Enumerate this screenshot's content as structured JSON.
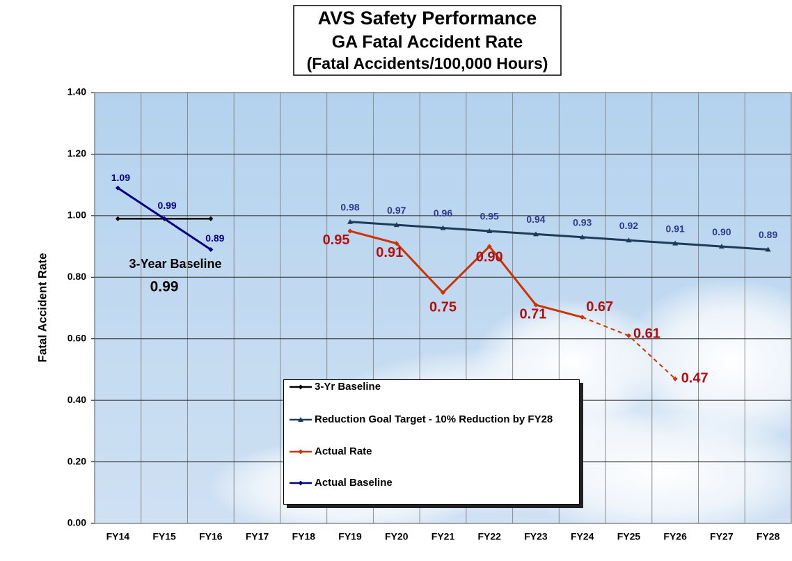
{
  "chart_data": {
    "type": "line",
    "title": [
      "AVS Safety Performance",
      "GA Fatal Accident Rate",
      "(Fatal Accidents/100,000 Hours)"
    ],
    "y_label": "Fatal Accident Rate",
    "categories": [
      "FY14",
      "FY15",
      "FY16",
      "FY17",
      "FY18",
      "FY19",
      "FY20",
      "FY21",
      "FY22",
      "FY23",
      "FY24",
      "FY25",
      "FY26",
      "FY27",
      "FY28"
    ],
    "ylim": [
      0,
      1.4
    ],
    "yticks": [
      {
        "value": 0,
        "label": "0.00"
      },
      {
        "value": 0.2,
        "label": "0.20"
      },
      {
        "value": 0.4,
        "label": "0.40"
      },
      {
        "value": 0.6,
        "label": "0.60"
      },
      {
        "value": 0.8,
        "label": "0.80"
      },
      {
        "value": 1.0,
        "label": "1.00"
      },
      {
        "value": 1.2,
        "label": "1.20"
      },
      {
        "value": 1.4,
        "label": "1.40"
      }
    ],
    "grid": true,
    "series": [
      {
        "name": "3-Yr Baseline",
        "color": "#000000",
        "marker": "diamond",
        "values": [
          0.99,
          0.99,
          0.99,
          null,
          null,
          null,
          null,
          null,
          null,
          null,
          null,
          null,
          null,
          null,
          null
        ]
      },
      {
        "name": "Reduction Goal Target - 10% Reduction by FY28",
        "color": "#1f3a56",
        "marker": "triangle",
        "values": [
          null,
          null,
          null,
          null,
          null,
          0.98,
          0.97,
          0.96,
          0.95,
          0.94,
          0.93,
          0.92,
          0.91,
          0.9,
          0.89
        ],
        "value_labels": [
          null,
          null,
          null,
          null,
          null,
          "0.98",
          "0.97",
          "0.96",
          "0.95",
          "0.94",
          "0.93",
          "0.92",
          "0.91",
          "0.90",
          "0.89"
        ],
        "label_color": "#2e3a8c"
      },
      {
        "name": "Actual Rate",
        "color": "#cc3300",
        "marker": "diamond",
        "dashed_from_category": "FY24",
        "values": [
          null,
          null,
          null,
          null,
          null,
          0.95,
          0.91,
          0.75,
          0.9,
          0.71,
          0.67,
          0.61,
          0.47,
          null,
          null
        ],
        "value_labels": [
          null,
          null,
          null,
          null,
          null,
          "0.95",
          "0.91",
          "0.75",
          "0.90",
          "0.71",
          "0.67",
          "0.61",
          "0.47",
          null,
          null
        ],
        "label_color": "#b01010"
      },
      {
        "name": "Actual Baseline",
        "color": "#000080",
        "marker": "diamond",
        "values": [
          1.09,
          0.99,
          0.89,
          null,
          null,
          null,
          null,
          null,
          null,
          null,
          null,
          null,
          null,
          null,
          null
        ],
        "value_labels": [
          "1.09",
          "0.99",
          "0.89",
          null,
          null,
          null,
          null,
          null,
          null,
          null,
          null,
          null,
          null,
          null,
          null
        ],
        "label_color": "#000080"
      }
    ],
    "annotations": [
      "3-Year Baseline",
      "0.99"
    ]
  }
}
